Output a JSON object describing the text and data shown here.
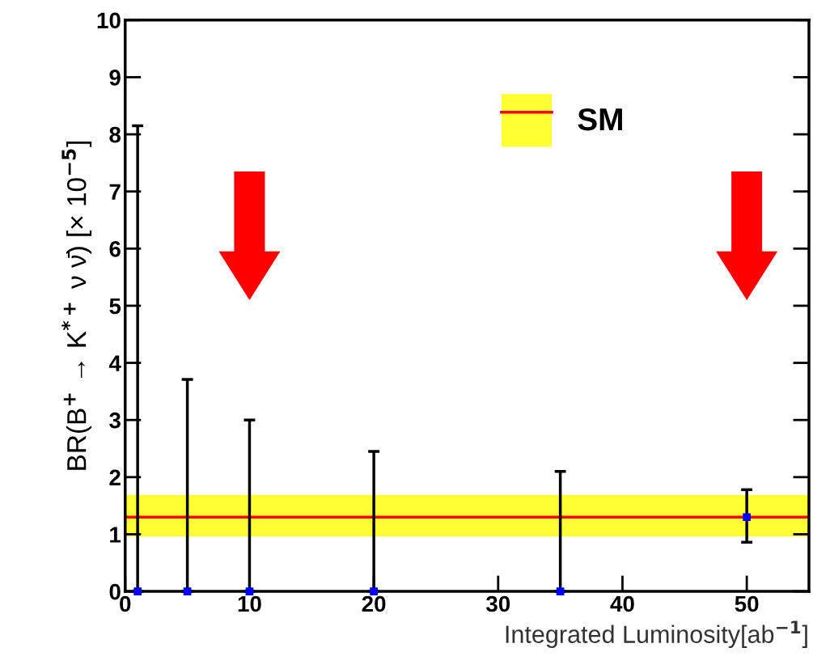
{
  "chart_data": {
    "type": "scatter",
    "xlabel": "Integrated Luminosity[ab$^{−1}$]",
    "ylabel": "BR(B$^{+}$ → K$^{*+}$ ν ν̄) [× 10$^{−5}$]",
    "series": [
      {
        "color": "#0000ff",
        "x": [
          1,
          5,
          10,
          20,
          35,
          50
        ],
        "values": [
          0,
          0,
          0,
          0,
          0,
          1.3
        ],
        "errors": [
          [
            0,
            8.15
          ],
          [
            0,
            3.71
          ],
          [
            0,
            3.0
          ],
          [
            0,
            2.45
          ],
          [
            0,
            2.1
          ],
          [
            0.86,
            1.78
          ]
        ]
      }
    ],
    "marker": "square",
    "xlim": [
      0,
      55
    ],
    "xticks": [
      0,
      10,
      20,
      30,
      40,
      50
    ],
    "ylim": [
      0,
      10
    ],
    "yticks": [
      0,
      1,
      2,
      3,
      4,
      5,
      6,
      7,
      8,
      9,
      10
    ],
    "bands": [
      {
        "axis": "y",
        "from": 0.96,
        "to": 1.69,
        "color": "#ffff33"
      }
    ],
    "ref_lines": [
      {
        "axis": "y",
        "value": 1.3,
        "label": "SM",
        "color": "#ff0000"
      }
    ],
    "legend": "top",
    "grid": false
  }
}
